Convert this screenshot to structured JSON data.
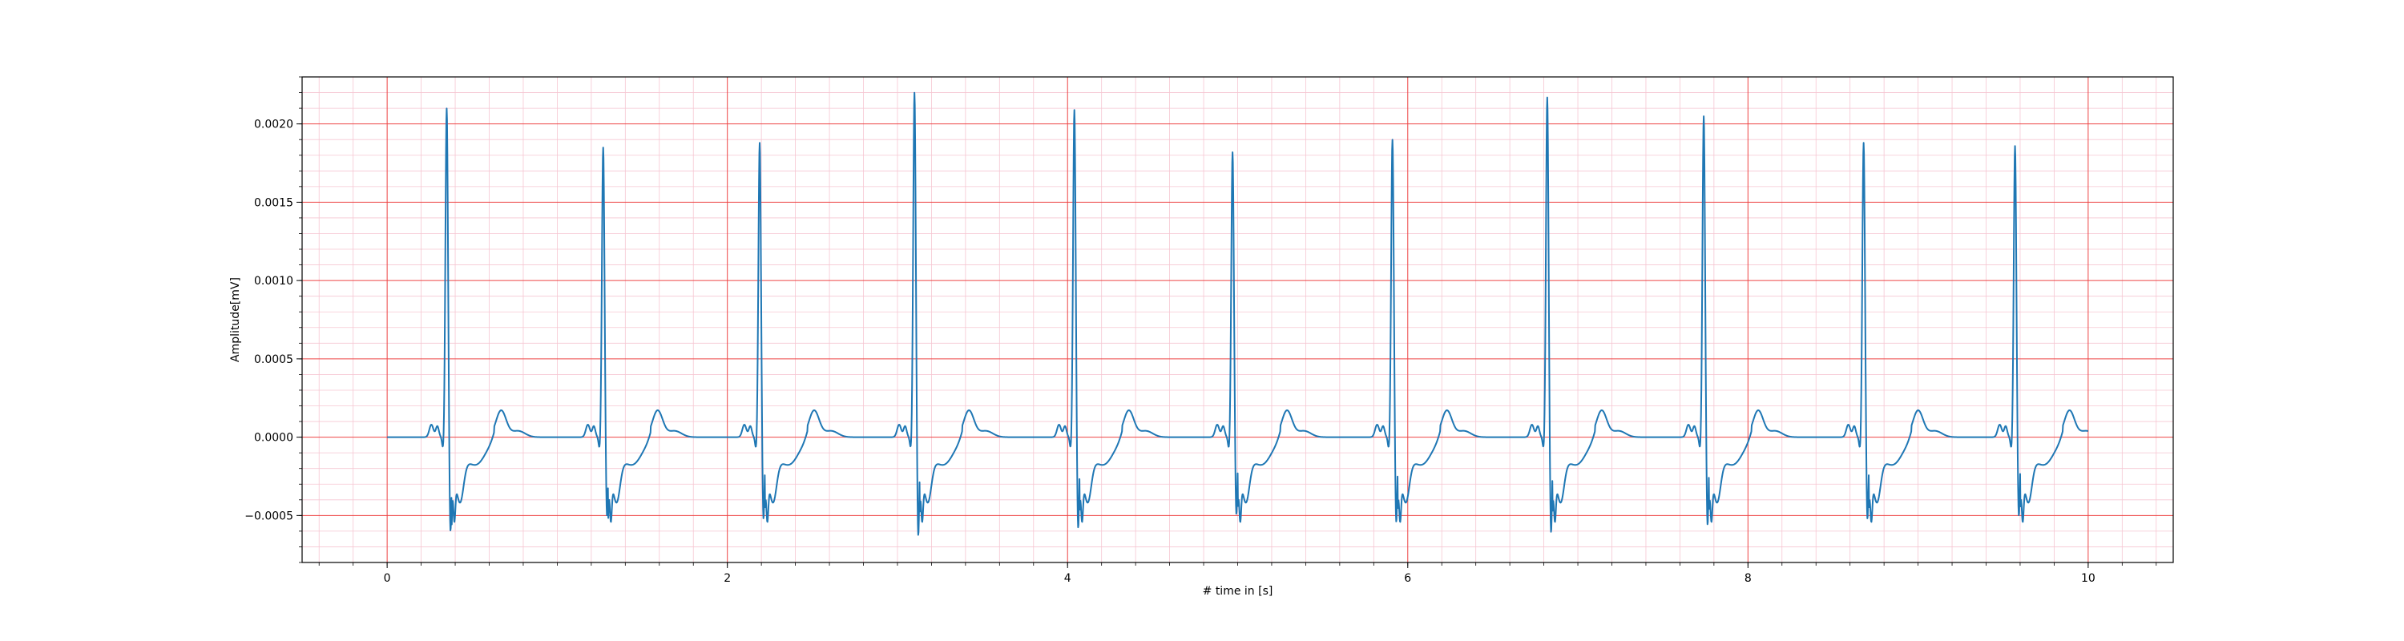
{
  "chart_data": {
    "type": "line",
    "title": "",
    "xlabel": "# time in [s]",
    "ylabel": "Amplitude[mV]",
    "xlim": [
      -0.5,
      10.5
    ],
    "ylim": [
      -0.0008,
      0.0023
    ],
    "x_ticks": [
      0,
      2,
      4,
      6,
      8,
      10
    ],
    "x_tick_labels": [
      "0",
      "2",
      "4",
      "6",
      "8",
      "10"
    ],
    "y_ticks": [
      -0.0005,
      0.0,
      0.0005,
      0.001,
      0.0015,
      0.002
    ],
    "y_tick_labels": [
      "−0.0005",
      "0.0000",
      "0.0005",
      "0.0010",
      "0.0015",
      "0.0020"
    ],
    "grid": {
      "major": true,
      "minor": true,
      "major_color": "#ee4444",
      "minor_color": "#f6c6d2"
    },
    "legend": "none",
    "series": [
      {
        "color": "#1f77b4",
        "x_range": [
          0,
          10
        ],
        "baseline": 0.0,
        "beats": [
          {
            "r_time": 0.35,
            "r_peak": 0.0021,
            "s_trough": -0.00062
          },
          {
            "r_time": 1.27,
            "r_peak": 0.00185,
            "s_trough": -0.00052
          },
          {
            "r_time": 2.19,
            "r_peak": 0.00188,
            "s_trough": -0.00054
          },
          {
            "r_time": 3.1,
            "r_peak": 0.0022,
            "s_trough": -0.00065
          },
          {
            "r_time": 4.04,
            "r_peak": 0.00209,
            "s_trough": -0.0006
          },
          {
            "r_time": 4.97,
            "r_peak": 0.00182,
            "s_trough": -0.00051
          },
          {
            "r_time": 5.91,
            "r_peak": 0.0019,
            "s_trough": -0.00056
          },
          {
            "r_time": 6.82,
            "r_peak": 0.00217,
            "s_trough": -0.00063
          },
          {
            "r_time": 7.74,
            "r_peak": 0.00205,
            "s_trough": -0.00058
          },
          {
            "r_time": 8.68,
            "r_peak": 0.00188,
            "s_trough": -0.00054
          },
          {
            "r_time": 9.57,
            "r_peak": 0.00186,
            "s_trough": -0.00052
          }
        ],
        "wave_shape": {
          "p_wave": {
            "offset_s": -0.09,
            "amplitude": 8e-05
          },
          "q_dip": {
            "offset_s": -0.02,
            "amplitude": -9e-05
          },
          "notch": {
            "offset_s": 0.045,
            "amplitude": -0.00025
          },
          "st_recovery": {
            "offset_s": 0.08,
            "amplitude": -0.0004
          },
          "t_wave": {
            "offset_s": 0.32,
            "amplitude": 0.00017
          }
        }
      }
    ]
  }
}
